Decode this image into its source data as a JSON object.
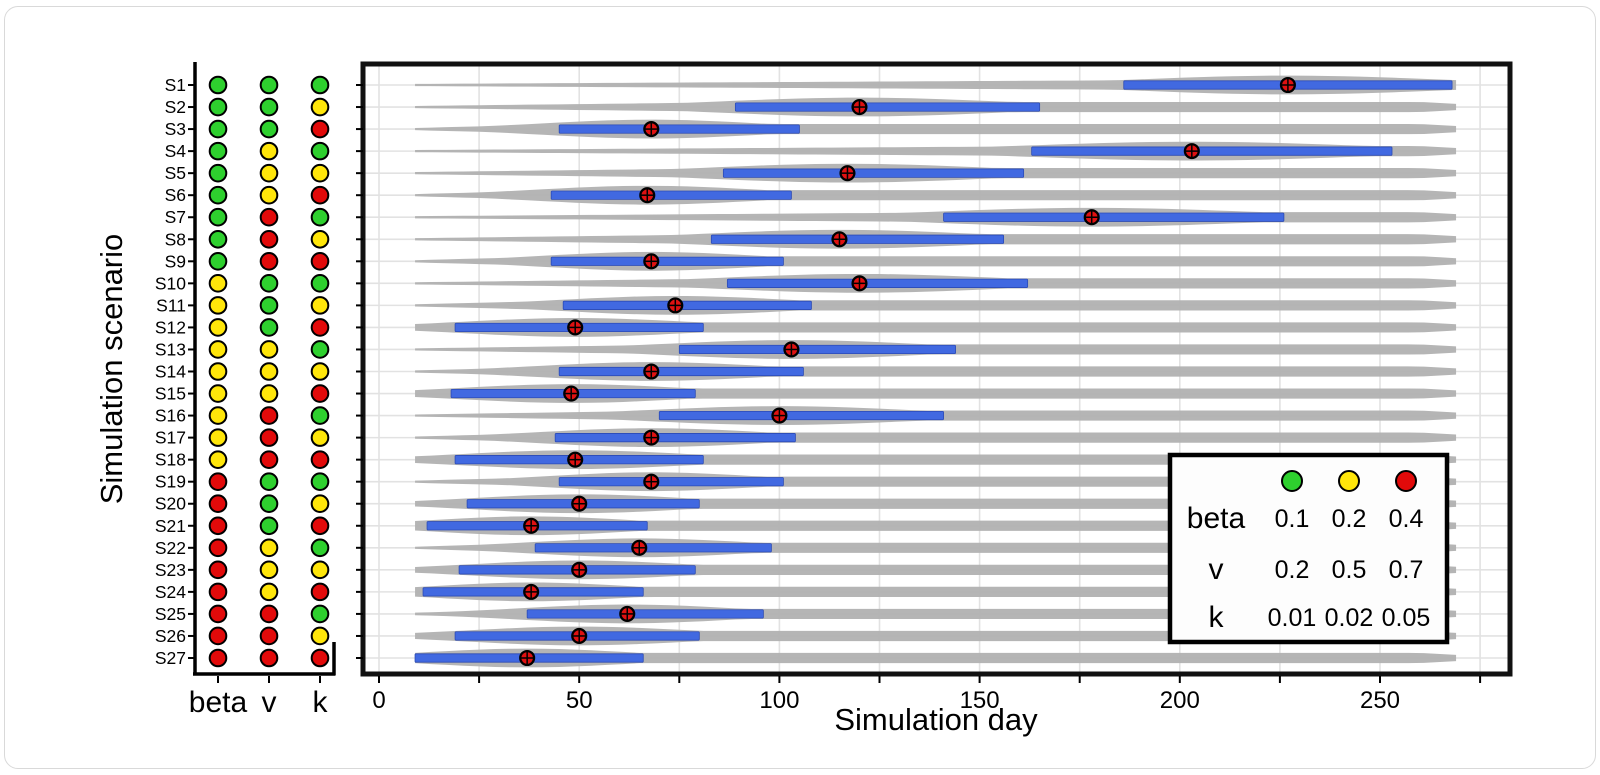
{
  "figure": {
    "y_axis_title": "Simulation scenario",
    "x_axis_title": "Simulation day"
  },
  "left_panel": {
    "column_labels": [
      "beta",
      "v",
      "k"
    ]
  },
  "x_axis": {
    "major_tick_labels": [
      "0",
      "50",
      "100",
      "150",
      "200",
      "250"
    ],
    "major_tick_values": [
      0,
      50,
      100,
      150,
      200,
      250
    ],
    "minor_step": 25,
    "minor_max": 275
  },
  "legend": {
    "header_dot_colors": [
      "green",
      "yellow",
      "red"
    ],
    "rows": [
      {
        "label": "beta",
        "values": [
          "0.1",
          "0.2",
          "0.4"
        ]
      },
      {
        "label": "v",
        "values": [
          "0.2",
          "0.5",
          "0.7"
        ]
      },
      {
        "label": "k",
        "values": [
          "0.01",
          "0.02",
          "0.05"
        ]
      }
    ]
  },
  "colors": {
    "green": "#2ed02e",
    "yellow": "#ffe60a",
    "red": "#e20a0a",
    "bar_blue": "#4169e1",
    "bar_blue_edge": "#2c4bb5",
    "marker_red": "#df1111",
    "violin_gray": "#b1b1b1",
    "grid": "#e2e2e2",
    "frame": "#111111"
  },
  "chart_data": {
    "type": "violin",
    "orientation": "horizontal",
    "title": "",
    "xlabel": "Simulation day",
    "ylabel": "Simulation scenario",
    "xlim": [
      -4,
      282
    ],
    "grid": true,
    "violin_value_range": [
      9,
      269
    ],
    "note": "Each row: gray violin of simulation-day distribution, blue interval bar, red circle-cross median marker; dot colors encode parameter levels (see legend).",
    "scenarios": [
      {
        "id": "S1",
        "beta": "green",
        "v": "green",
        "k": "green",
        "interval": [
          186,
          268
        ],
        "median": 227
      },
      {
        "id": "S2",
        "beta": "green",
        "v": "green",
        "k": "yellow",
        "interval": [
          89,
          165
        ],
        "median": 120
      },
      {
        "id": "S3",
        "beta": "green",
        "v": "green",
        "k": "red",
        "interval": [
          45,
          105
        ],
        "median": 68
      },
      {
        "id": "S4",
        "beta": "green",
        "v": "yellow",
        "k": "green",
        "interval": [
          163,
          253
        ],
        "median": 203
      },
      {
        "id": "S5",
        "beta": "green",
        "v": "yellow",
        "k": "yellow",
        "interval": [
          86,
          161
        ],
        "median": 117
      },
      {
        "id": "S6",
        "beta": "green",
        "v": "yellow",
        "k": "red",
        "interval": [
          43,
          103
        ],
        "median": 67
      },
      {
        "id": "S7",
        "beta": "green",
        "v": "red",
        "k": "green",
        "interval": [
          141,
          226
        ],
        "median": 178
      },
      {
        "id": "S8",
        "beta": "green",
        "v": "red",
        "k": "yellow",
        "interval": [
          83,
          156
        ],
        "median": 115
      },
      {
        "id": "S9",
        "beta": "green",
        "v": "red",
        "k": "red",
        "interval": [
          43,
          101
        ],
        "median": 68
      },
      {
        "id": "S10",
        "beta": "yellow",
        "v": "green",
        "k": "green",
        "interval": [
          87,
          162
        ],
        "median": 120
      },
      {
        "id": "S11",
        "beta": "yellow",
        "v": "green",
        "k": "yellow",
        "interval": [
          46,
          108
        ],
        "median": 74
      },
      {
        "id": "S12",
        "beta": "yellow",
        "v": "green",
        "k": "red",
        "interval": [
          19,
          81
        ],
        "median": 49
      },
      {
        "id": "S13",
        "beta": "yellow",
        "v": "yellow",
        "k": "green",
        "interval": [
          75,
          144
        ],
        "median": 103
      },
      {
        "id": "S14",
        "beta": "yellow",
        "v": "yellow",
        "k": "yellow",
        "interval": [
          45,
          106
        ],
        "median": 68
      },
      {
        "id": "S15",
        "beta": "yellow",
        "v": "yellow",
        "k": "red",
        "interval": [
          18,
          79
        ],
        "median": 48
      },
      {
        "id": "S16",
        "beta": "yellow",
        "v": "red",
        "k": "green",
        "interval": [
          70,
          141
        ],
        "median": 100
      },
      {
        "id": "S17",
        "beta": "yellow",
        "v": "red",
        "k": "yellow",
        "interval": [
          44,
          104
        ],
        "median": 68
      },
      {
        "id": "S18",
        "beta": "yellow",
        "v": "red",
        "k": "red",
        "interval": [
          19,
          81
        ],
        "median": 49
      },
      {
        "id": "S19",
        "beta": "red",
        "v": "green",
        "k": "green",
        "interval": [
          45,
          101
        ],
        "median": 68
      },
      {
        "id": "S20",
        "beta": "red",
        "v": "green",
        "k": "yellow",
        "interval": [
          22,
          80
        ],
        "median": 50
      },
      {
        "id": "S21",
        "beta": "red",
        "v": "green",
        "k": "red",
        "interval": [
          12,
          67
        ],
        "median": 38
      },
      {
        "id": "S22",
        "beta": "red",
        "v": "yellow",
        "k": "green",
        "interval": [
          39,
          98
        ],
        "median": 65
      },
      {
        "id": "S23",
        "beta": "red",
        "v": "yellow",
        "k": "yellow",
        "interval": [
          20,
          79
        ],
        "median": 50
      },
      {
        "id": "S24",
        "beta": "red",
        "v": "yellow",
        "k": "red",
        "interval": [
          11,
          66
        ],
        "median": 38
      },
      {
        "id": "S25",
        "beta": "red",
        "v": "red",
        "k": "green",
        "interval": [
          37,
          96
        ],
        "median": 62
      },
      {
        "id": "S26",
        "beta": "red",
        "v": "red",
        "k": "yellow",
        "interval": [
          19,
          80
        ],
        "median": 50
      },
      {
        "id": "S27",
        "beta": "red",
        "v": "red",
        "k": "red",
        "interval": [
          9,
          66
        ],
        "median": 37
      }
    ]
  }
}
